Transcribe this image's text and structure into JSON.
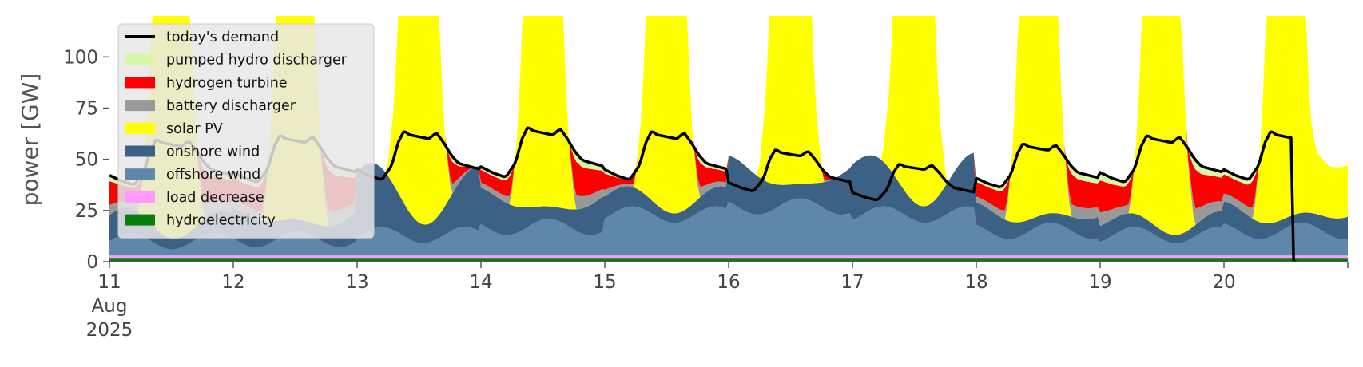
{
  "chart_data": {
    "type": "area",
    "title": "",
    "xlabel": "",
    "ylabel": "power [GW]",
    "ylim": [
      0,
      120
    ],
    "xlim": [
      0,
      10
    ],
    "yticks": [
      0,
      25,
      50,
      75,
      100
    ],
    "xtick_positions": [
      0,
      1,
      2,
      3,
      4,
      5,
      6,
      7,
      8,
      9
    ],
    "xtick_labels": [
      "11",
      "12",
      "13",
      "14",
      "15",
      "16",
      "17",
      "18",
      "19",
      "20"
    ],
    "xtick_sublabels": [
      "Aug",
      "2025"
    ],
    "x_unit": "days since 11 Aug 2025",
    "grid": false,
    "legend_position": "upper-left",
    "legend": [
      {
        "name": "today's demand",
        "type": "line",
        "color": "#000000"
      },
      {
        "name": "pumped hydro discharger",
        "type": "patch",
        "color": "#d9f7a8"
      },
      {
        "name": "hydrogen turbine",
        "type": "patch",
        "color": "#ff0000"
      },
      {
        "name": "battery discharger",
        "type": "patch",
        "color": "#999999"
      },
      {
        "name": "solar PV",
        "type": "patch",
        "color": "#ffff00"
      },
      {
        "name": "onshore wind",
        "type": "patch",
        "color": "#3c6184"
      },
      {
        "name": "offshore wind",
        "type": "patch",
        "color": "#5f87a9"
      },
      {
        "name": "load decrease",
        "type": "patch",
        "color": "#ff99ff"
      },
      {
        "name": "hydroelectricity",
        "type": "patch",
        "color": "#0a7d0a"
      }
    ],
    "day_profile": {
      "demand_keypoints": [
        [
          0,
          45
        ],
        [
          0.1,
          42
        ],
        [
          0.2,
          40
        ],
        [
          0.28,
          47
        ],
        [
          0.33,
          58
        ],
        [
          0.38,
          64
        ],
        [
          0.42,
          62
        ],
        [
          0.5,
          61
        ],
        [
          0.58,
          60
        ],
        [
          0.64,
          63
        ],
        [
          0.7,
          58
        ],
        [
          0.76,
          52
        ],
        [
          0.82,
          48
        ],
        [
          0.88,
          47
        ],
        [
          0.94,
          46
        ],
        [
          1,
          45
        ]
      ],
      "solar_keypoints": [
        [
          0,
          0
        ],
        [
          0.24,
          0
        ],
        [
          0.3,
          40
        ],
        [
          0.34,
          100
        ],
        [
          0.39,
          125
        ],
        [
          0.61,
          125
        ],
        [
          0.66,
          100
        ],
        [
          0.7,
          40
        ],
        [
          0.76,
          0
        ],
        [
          1,
          0
        ]
      ]
    },
    "daily_peak_demand": [
      60,
      62,
      64,
      66,
      64,
      55,
      48,
      58,
      62,
      64
    ],
    "daily_offshore_wind": [
      5,
      6,
      8,
      12,
      18,
      22,
      18,
      10,
      8,
      10
    ],
    "daily_onshore_wind_extra": [
      10,
      12,
      30,
      15,
      8,
      20,
      25,
      8,
      5,
      8
    ],
    "hydroelectricity_level": 1.5,
    "load_decrease_level": 1.5,
    "demand_end": {
      "drop_at": 9.55,
      "end_at": 9.6
    },
    "final_day_step": [
      [
        9.6,
        98
      ],
      [
        9.62,
        98
      ],
      [
        9.65,
        60
      ],
      [
        9.75,
        30
      ],
      [
        9.85,
        25
      ],
      [
        10,
        25
      ]
    ]
  }
}
